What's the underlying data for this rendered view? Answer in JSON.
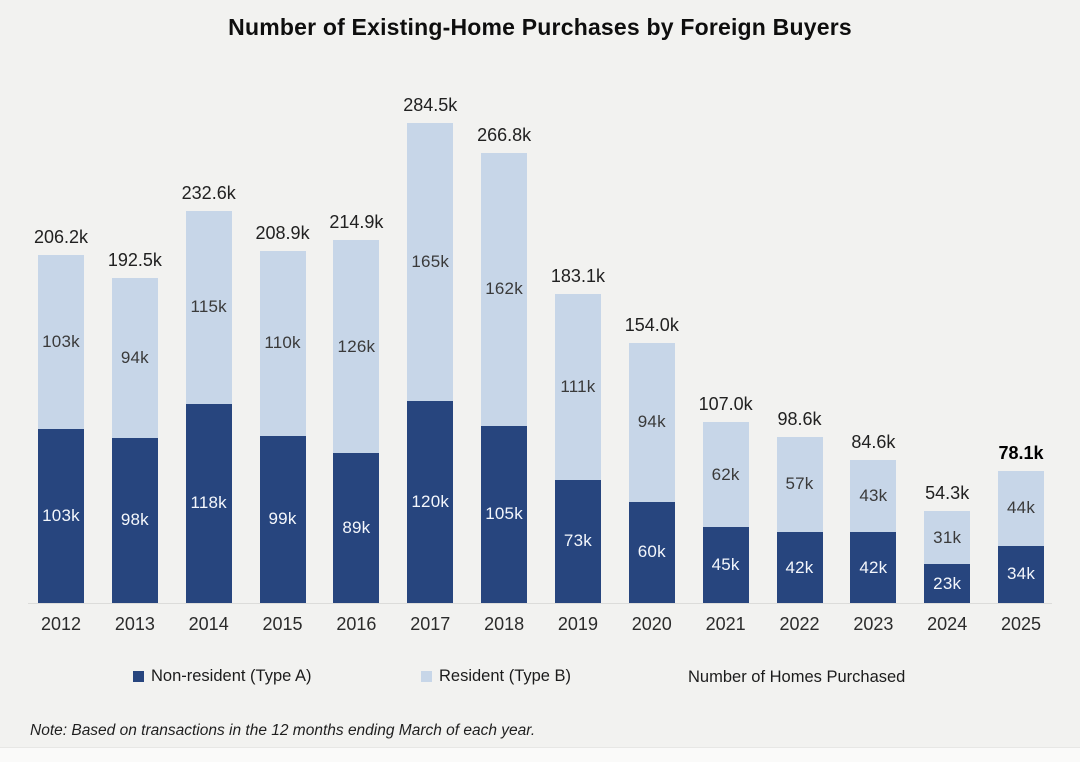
{
  "title": "Number of Existing-Home Purchases by Foreign Buyers",
  "note": "Note: Based on transactions in the 12 months ending March of each year.",
  "legend": {
    "non_resident_label": "Non-resident (Type A)",
    "resident_label": "Resident (Type B)",
    "axis_label": "Number of Homes Purchased"
  },
  "colors": {
    "non_resident": "#27457e",
    "resident": "#c7d6e8",
    "background": "#f2f2f0",
    "label_on_dark": "#f4f7fc",
    "label_on_light": "#3a3a3a"
  },
  "chart_data": {
    "type": "bar",
    "stacked": true,
    "title": "Number of Existing-Home Purchases by Foreign Buyers",
    "xlabel": "",
    "ylabel": "Number of Homes Purchased",
    "unit": "thousands of homes",
    "grid": false,
    "legend_position": "bottom",
    "categories": [
      "2012",
      "2013",
      "2014",
      "2015",
      "2016",
      "2017",
      "2018",
      "2019",
      "2020",
      "2021",
      "2022",
      "2023",
      "2024",
      "2025"
    ],
    "series": [
      {
        "name": "Non-resident (Type A)",
        "values": [
          103,
          98,
          118,
          99,
          89,
          120,
          105,
          73,
          60,
          45,
          42,
          42,
          23,
          34
        ],
        "labels": [
          "103k",
          "98k",
          "118k",
          "99k",
          "89k",
          "120k",
          "105k",
          "73k",
          "60k",
          "45k",
          "42k",
          "42k",
          "23k",
          "34k"
        ]
      },
      {
        "name": "Resident (Type B)",
        "values": [
          103,
          94,
          115,
          110,
          126,
          165,
          162,
          111,
          94,
          62,
          57,
          43,
          31,
          44
        ],
        "labels": [
          "103k",
          "94k",
          "115k",
          "110k",
          "126k",
          "165k",
          "162k",
          "111k",
          "94k",
          "62k",
          "57k",
          "43k",
          "31k",
          "44k"
        ]
      }
    ],
    "totals": [
      206.2,
      192.5,
      232.6,
      208.9,
      214.9,
      284.5,
      266.8,
      183.1,
      154.0,
      107.0,
      98.6,
      84.6,
      54.3,
      78.1
    ],
    "total_labels": [
      "206.2k",
      "192.5k",
      "232.6k",
      "208.9k",
      "214.9k",
      "284.5k",
      "266.8k",
      "183.1k",
      "154.0k",
      "107.0k",
      "98.6k",
      "84.6k",
      "54.3k",
      "78.1k"
    ],
    "highlighted_total_index": 13,
    "ylim": [
      0,
      300
    ]
  }
}
